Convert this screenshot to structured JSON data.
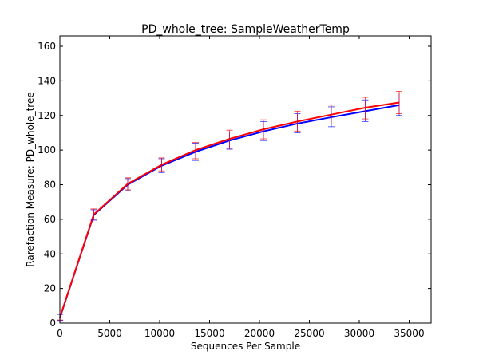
{
  "chart_data": {
    "type": "line",
    "title": "PD_whole_tree: SampleWeatherTemp",
    "xlabel": "Sequences Per Sample",
    "ylabel": "Rarefaction Measure: PD_whole_tree",
    "xlim": [
      0,
      37200
    ],
    "ylim": [
      0,
      166
    ],
    "xticks": [
      0,
      5000,
      10000,
      15000,
      20000,
      25000,
      30000,
      35000
    ],
    "yticks": [
      0,
      20,
      40,
      60,
      80,
      100,
      120,
      140,
      160
    ],
    "grid": false,
    "legend": "none",
    "x": [
      10,
      3400,
      6800,
      10200,
      13600,
      17000,
      20400,
      23800,
      27200,
      30600,
      34000
    ],
    "series": [
      {
        "color": "#0000ff",
        "values": [
          3.2,
          62.5,
          80.0,
          91.0,
          99.0,
          105.5,
          110.8,
          115.3,
          119.0,
          122.5,
          126.0
        ],
        "err_low": [
          1.5,
          59.5,
          76.5,
          87.0,
          94.0,
          100.5,
          105.5,
          110.0,
          113.5,
          116.5,
          120.0
        ],
        "err_high": [
          5.0,
          65.5,
          83.5,
          95.0,
          104.0,
          110.5,
          116.5,
          121.0,
          125.0,
          129.0,
          133.0
        ]
      },
      {
        "color": "#ff0000",
        "values": [
          3.4,
          62.8,
          80.5,
          91.5,
          100.0,
          106.5,
          112.0,
          116.5,
          120.5,
          124.5,
          127.5
        ],
        "err_low": [
          1.8,
          60.0,
          77.0,
          88.0,
          95.0,
          101.0,
          106.5,
          111.0,
          115.0,
          118.0,
          121.0
        ],
        "err_high": [
          5.2,
          66.0,
          84.0,
          95.5,
          104.5,
          111.5,
          117.5,
          122.5,
          126.0,
          130.5,
          134.0
        ]
      }
    ]
  }
}
